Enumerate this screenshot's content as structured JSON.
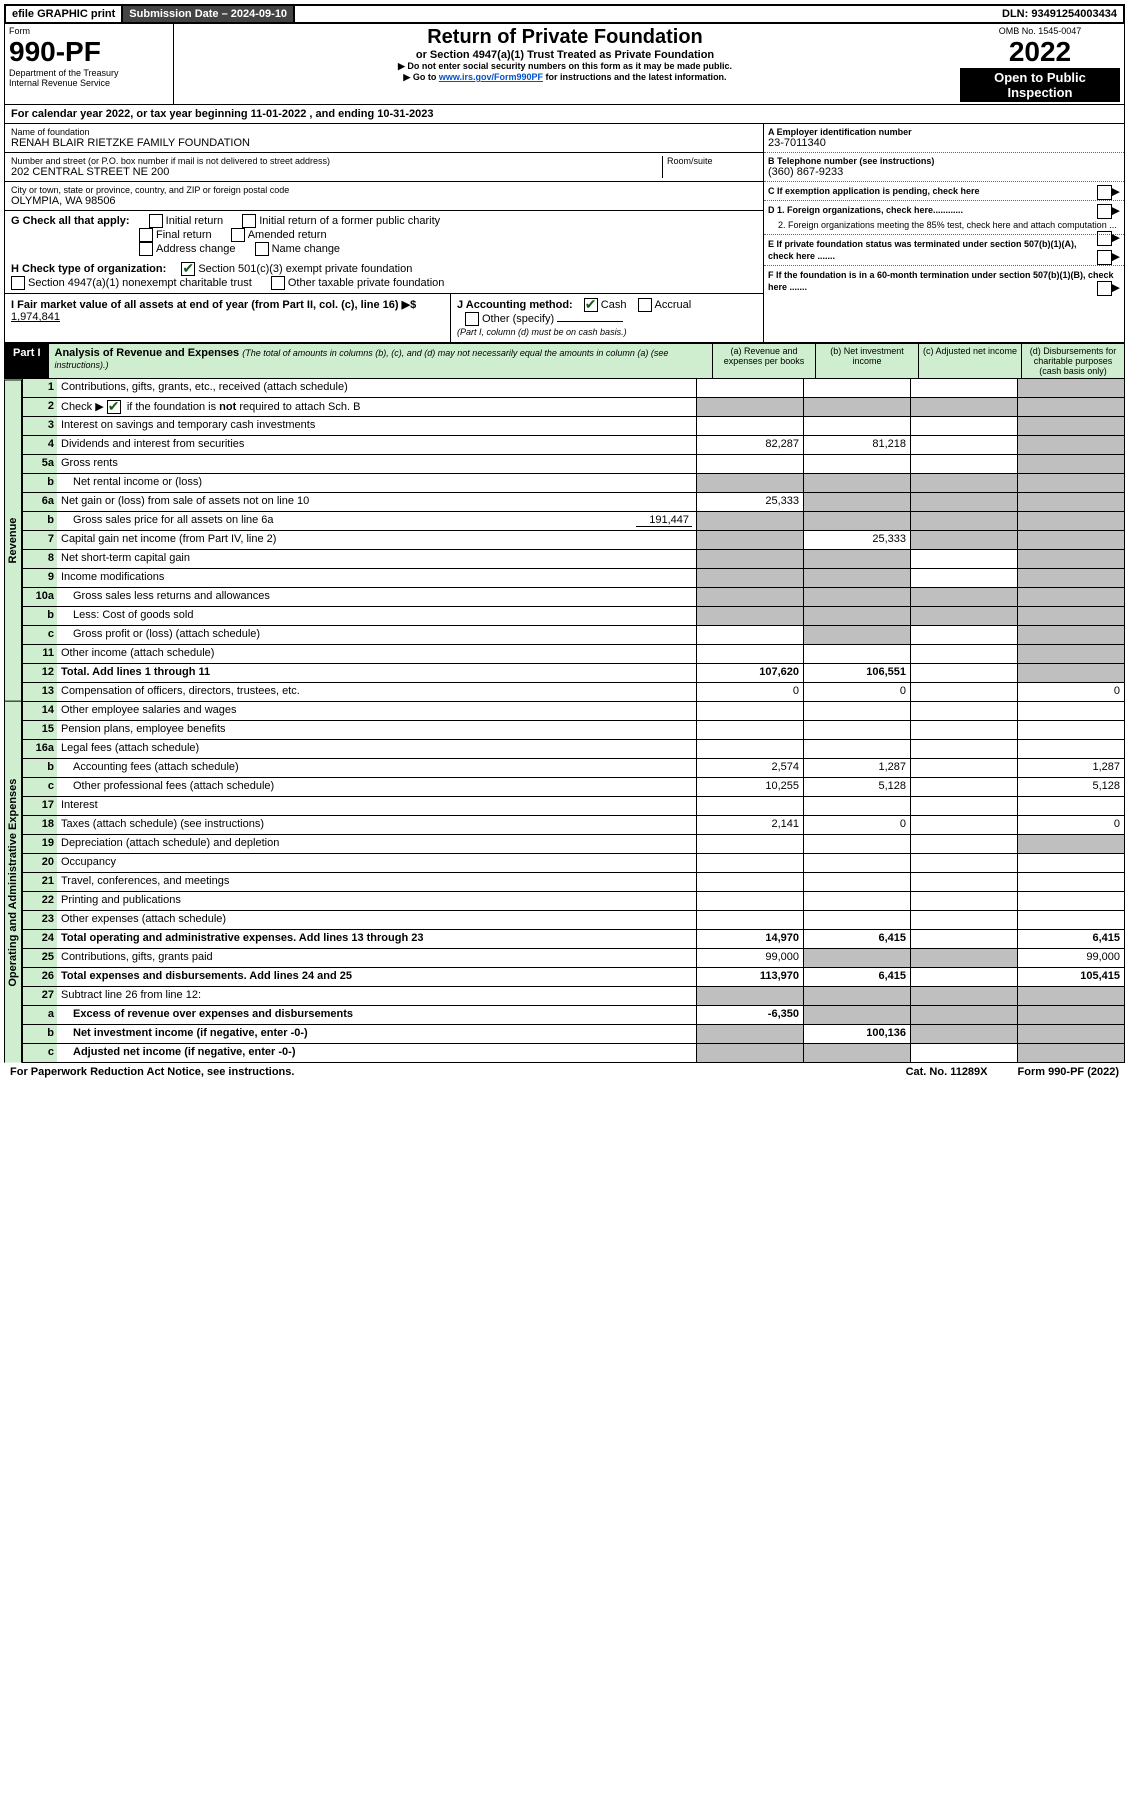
{
  "topbar": {
    "efile": "efile GRAPHIC print",
    "sub_label": "Submission Date – ",
    "sub_date": "2024-09-10",
    "dln_label": "DLN: ",
    "dln": "93491254003434"
  },
  "header": {
    "form": "Form",
    "form_num": "990-PF",
    "dept": "Department of the Treasury",
    "irs": "Internal Revenue Service",
    "title1": "Return of Private Foundation",
    "title2": "or Section 4947(a)(1) Trust Treated as Private Foundation",
    "note1": "▶ Do not enter social security numbers on this form as it may be made public.",
    "note2_pre": "▶ Go to ",
    "note2_link": "www.irs.gov/Form990PF",
    "note2_post": " for instructions and the latest information.",
    "omb": "OMB No. 1545-0047",
    "year": "2022",
    "inspect": "Open to Public Inspection"
  },
  "calyear": {
    "pre": "For calendar year 2022, or tax year beginning ",
    "begin": "11-01-2022",
    "mid": " , and ending ",
    "end": "10-31-2023"
  },
  "entity": {
    "name_label": "Name of foundation",
    "name": "RENAH BLAIR RIETZKE FAMILY FOUNDATION",
    "addr_label": "Number and street (or P.O. box number if mail is not delivered to street address)",
    "room_label": "Room/suite",
    "addr": "202 CENTRAL STREET NE 200",
    "city_label": "City or town, state or province, country, and ZIP or foreign postal code",
    "city": "OLYMPIA, WA  98506",
    "ein_label": "A Employer identification number",
    "ein": "23-7011340",
    "tel_label": "B Telephone number (see instructions)",
    "tel": "(360) 867-9233",
    "c": "C If exemption application is pending, check here",
    "d1": "D 1. Foreign organizations, check here............",
    "d2": "2. Foreign organizations meeting the 85% test, check here and attach computation ...",
    "e": "E If private foundation status was terminated under section 507(b)(1)(A), check here .......",
    "f": "F If the foundation is in a 60-month termination under section 507(b)(1)(B), check here ......."
  },
  "g": {
    "label": "G Check all that apply:",
    "o1": "Initial return",
    "o2": "Initial return of a former public charity",
    "o3": "Final return",
    "o4": "Amended return",
    "o5": "Address change",
    "o6": "Name change"
  },
  "h": {
    "label": "H Check type of organization:",
    "o1": "Section 501(c)(3) exempt private foundation",
    "o2": "Section 4947(a)(1) nonexempt charitable trust",
    "o3": "Other taxable private foundation"
  },
  "i": {
    "label": "I Fair market value of all assets at end of year (from Part II, col. (c), line 16) ▶$",
    "val": "1,974,841"
  },
  "j": {
    "label": "J Accounting method:",
    "o1": "Cash",
    "o2": "Accrual",
    "o3": "Other (specify)",
    "note": "(Part I, column (d) must be on cash basis.)"
  },
  "part1": {
    "lbl": "Part I",
    "title": "Analysis of Revenue and Expenses",
    "sub": "(The total of amounts in columns (b), (c), and (d) may not necessarily equal the amounts in column (a) (see instructions).)",
    "cols": {
      "a": "(a) Revenue and expenses per books",
      "b": "(b) Net investment income",
      "c": "(c) Adjusted net income",
      "d": "(d) Disbursements for charitable purposes (cash basis only)"
    }
  },
  "sections": {
    "rev": "Revenue",
    "op": "Operating and Administrative Expenses"
  },
  "rows": [
    {
      "n": "1",
      "t": "Contributions, gifts, grants, etc., received (attach schedule)",
      "a": "",
      "b": "",
      "c": "",
      "d": "",
      "sh": [
        "d"
      ]
    },
    {
      "n": "2",
      "t": "Check ▶ ☑ if the foundation is not required to attach Sch. B",
      "style": "check",
      "a": "",
      "b": "",
      "c": "",
      "d": "",
      "sh": [
        "a",
        "b",
        "c",
        "d"
      ]
    },
    {
      "n": "3",
      "t": "Interest on savings and temporary cash investments",
      "a": "",
      "b": "",
      "c": "",
      "d": "",
      "sh": [
        "d"
      ]
    },
    {
      "n": "4",
      "t": "Dividends and interest from securities",
      "a": "82,287",
      "b": "81,218",
      "c": "",
      "d": "",
      "sh": [
        "d"
      ]
    },
    {
      "n": "5a",
      "t": "Gross rents",
      "a": "",
      "b": "",
      "c": "",
      "d": "",
      "sh": [
        "d"
      ]
    },
    {
      "n": "b",
      "t": "Net rental income or (loss)",
      "a": "",
      "b": "",
      "c": "",
      "d": "",
      "sh": [
        "a",
        "b",
        "c",
        "d"
      ],
      "indent": 1
    },
    {
      "n": "6a",
      "t": "Net gain or (loss) from sale of assets not on line 10",
      "a": "25,333",
      "b": "",
      "c": "",
      "d": "",
      "sh": [
        "b",
        "c",
        "d"
      ]
    },
    {
      "n": "b",
      "t": "Gross sales price for all assets on line 6a",
      "after": "191,447",
      "a": "",
      "b": "",
      "c": "",
      "d": "",
      "sh": [
        "a",
        "b",
        "c",
        "d"
      ],
      "indent": 1
    },
    {
      "n": "7",
      "t": "Capital gain net income (from Part IV, line 2)",
      "a": "",
      "b": "25,333",
      "c": "",
      "d": "",
      "sh": [
        "a",
        "c",
        "d"
      ]
    },
    {
      "n": "8",
      "t": "Net short-term capital gain",
      "a": "",
      "b": "",
      "c": "",
      "d": "",
      "sh": [
        "a",
        "b",
        "d"
      ]
    },
    {
      "n": "9",
      "t": "Income modifications",
      "a": "",
      "b": "",
      "c": "",
      "d": "",
      "sh": [
        "a",
        "b",
        "d"
      ]
    },
    {
      "n": "10a",
      "t": "Gross sales less returns and allowances",
      "a": "",
      "b": "",
      "c": "",
      "d": "",
      "sh": [
        "a",
        "b",
        "c",
        "d"
      ],
      "indent": 1
    },
    {
      "n": "b",
      "t": "Less: Cost of goods sold",
      "a": "",
      "b": "",
      "c": "",
      "d": "",
      "sh": [
        "a",
        "b",
        "c",
        "d"
      ],
      "indent": 1
    },
    {
      "n": "c",
      "t": "Gross profit or (loss) (attach schedule)",
      "a": "",
      "b": "",
      "c": "",
      "d": "",
      "sh": [
        "b",
        "d"
      ],
      "indent": 1
    },
    {
      "n": "11",
      "t": "Other income (attach schedule)",
      "a": "",
      "b": "",
      "c": "",
      "d": "",
      "sh": [
        "d"
      ]
    },
    {
      "n": "12",
      "t": "Total. Add lines 1 through 11",
      "bold": true,
      "a": "107,620",
      "b": "106,551",
      "c": "",
      "d": "",
      "sh": [
        "d"
      ]
    },
    {
      "n": "13",
      "t": "Compensation of officers, directors, trustees, etc.",
      "a": "0",
      "b": "0",
      "c": "",
      "d": "0",
      "sec": "op"
    },
    {
      "n": "14",
      "t": "Other employee salaries and wages",
      "a": "",
      "b": "",
      "c": "",
      "d": ""
    },
    {
      "n": "15",
      "t": "Pension plans, employee benefits",
      "a": "",
      "b": "",
      "c": "",
      "d": ""
    },
    {
      "n": "16a",
      "t": "Legal fees (attach schedule)",
      "a": "",
      "b": "",
      "c": "",
      "d": ""
    },
    {
      "n": "b",
      "t": "Accounting fees (attach schedule)",
      "a": "2,574",
      "b": "1,287",
      "c": "",
      "d": "1,287",
      "indent": 1
    },
    {
      "n": "c",
      "t": "Other professional fees (attach schedule)",
      "a": "10,255",
      "b": "5,128",
      "c": "",
      "d": "5,128",
      "indent": 1
    },
    {
      "n": "17",
      "t": "Interest",
      "a": "",
      "b": "",
      "c": "",
      "d": ""
    },
    {
      "n": "18",
      "t": "Taxes (attach schedule) (see instructions)",
      "a": "2,141",
      "b": "0",
      "c": "",
      "d": "0"
    },
    {
      "n": "19",
      "t": "Depreciation (attach schedule) and depletion",
      "a": "",
      "b": "",
      "c": "",
      "d": "",
      "sh": [
        "d"
      ]
    },
    {
      "n": "20",
      "t": "Occupancy",
      "a": "",
      "b": "",
      "c": "",
      "d": ""
    },
    {
      "n": "21",
      "t": "Travel, conferences, and meetings",
      "a": "",
      "b": "",
      "c": "",
      "d": ""
    },
    {
      "n": "22",
      "t": "Printing and publications",
      "a": "",
      "b": "",
      "c": "",
      "d": ""
    },
    {
      "n": "23",
      "t": "Other expenses (attach schedule)",
      "a": "",
      "b": "",
      "c": "",
      "d": ""
    },
    {
      "n": "24",
      "t": "Total operating and administrative expenses. Add lines 13 through 23",
      "bold": true,
      "a": "14,970",
      "b": "6,415",
      "c": "",
      "d": "6,415"
    },
    {
      "n": "25",
      "t": "Contributions, gifts, grants paid",
      "a": "99,000",
      "b": "",
      "c": "",
      "d": "99,000",
      "sh": [
        "b",
        "c"
      ]
    },
    {
      "n": "26",
      "t": "Total expenses and disbursements. Add lines 24 and 25",
      "bold": true,
      "a": "113,970",
      "b": "6,415",
      "c": "",
      "d": "105,415"
    },
    {
      "n": "27",
      "t": "Subtract line 26 from line 12:",
      "a": "",
      "b": "",
      "c": "",
      "d": "",
      "sh": [
        "a",
        "b",
        "c",
        "d"
      ]
    },
    {
      "n": "a",
      "t": "Excess of revenue over expenses and disbursements",
      "bold": true,
      "a": "-6,350",
      "b": "",
      "c": "",
      "d": "",
      "sh": [
        "b",
        "c",
        "d"
      ],
      "indent": 1
    },
    {
      "n": "b",
      "t": "Net investment income (if negative, enter -0-)",
      "bold": true,
      "a": "",
      "b": "100,136",
      "c": "",
      "d": "",
      "sh": [
        "a",
        "c",
        "d"
      ],
      "indent": 1
    },
    {
      "n": "c",
      "t": "Adjusted net income (if negative, enter -0-)",
      "bold": true,
      "a": "",
      "b": "",
      "c": "",
      "d": "",
      "sh": [
        "a",
        "b",
        "d"
      ],
      "indent": 1
    }
  ],
  "footer": {
    "left": "For Paperwork Reduction Act Notice, see instructions.",
    "mid": "Cat. No. 11289X",
    "right": "Form 990-PF (2022)"
  }
}
